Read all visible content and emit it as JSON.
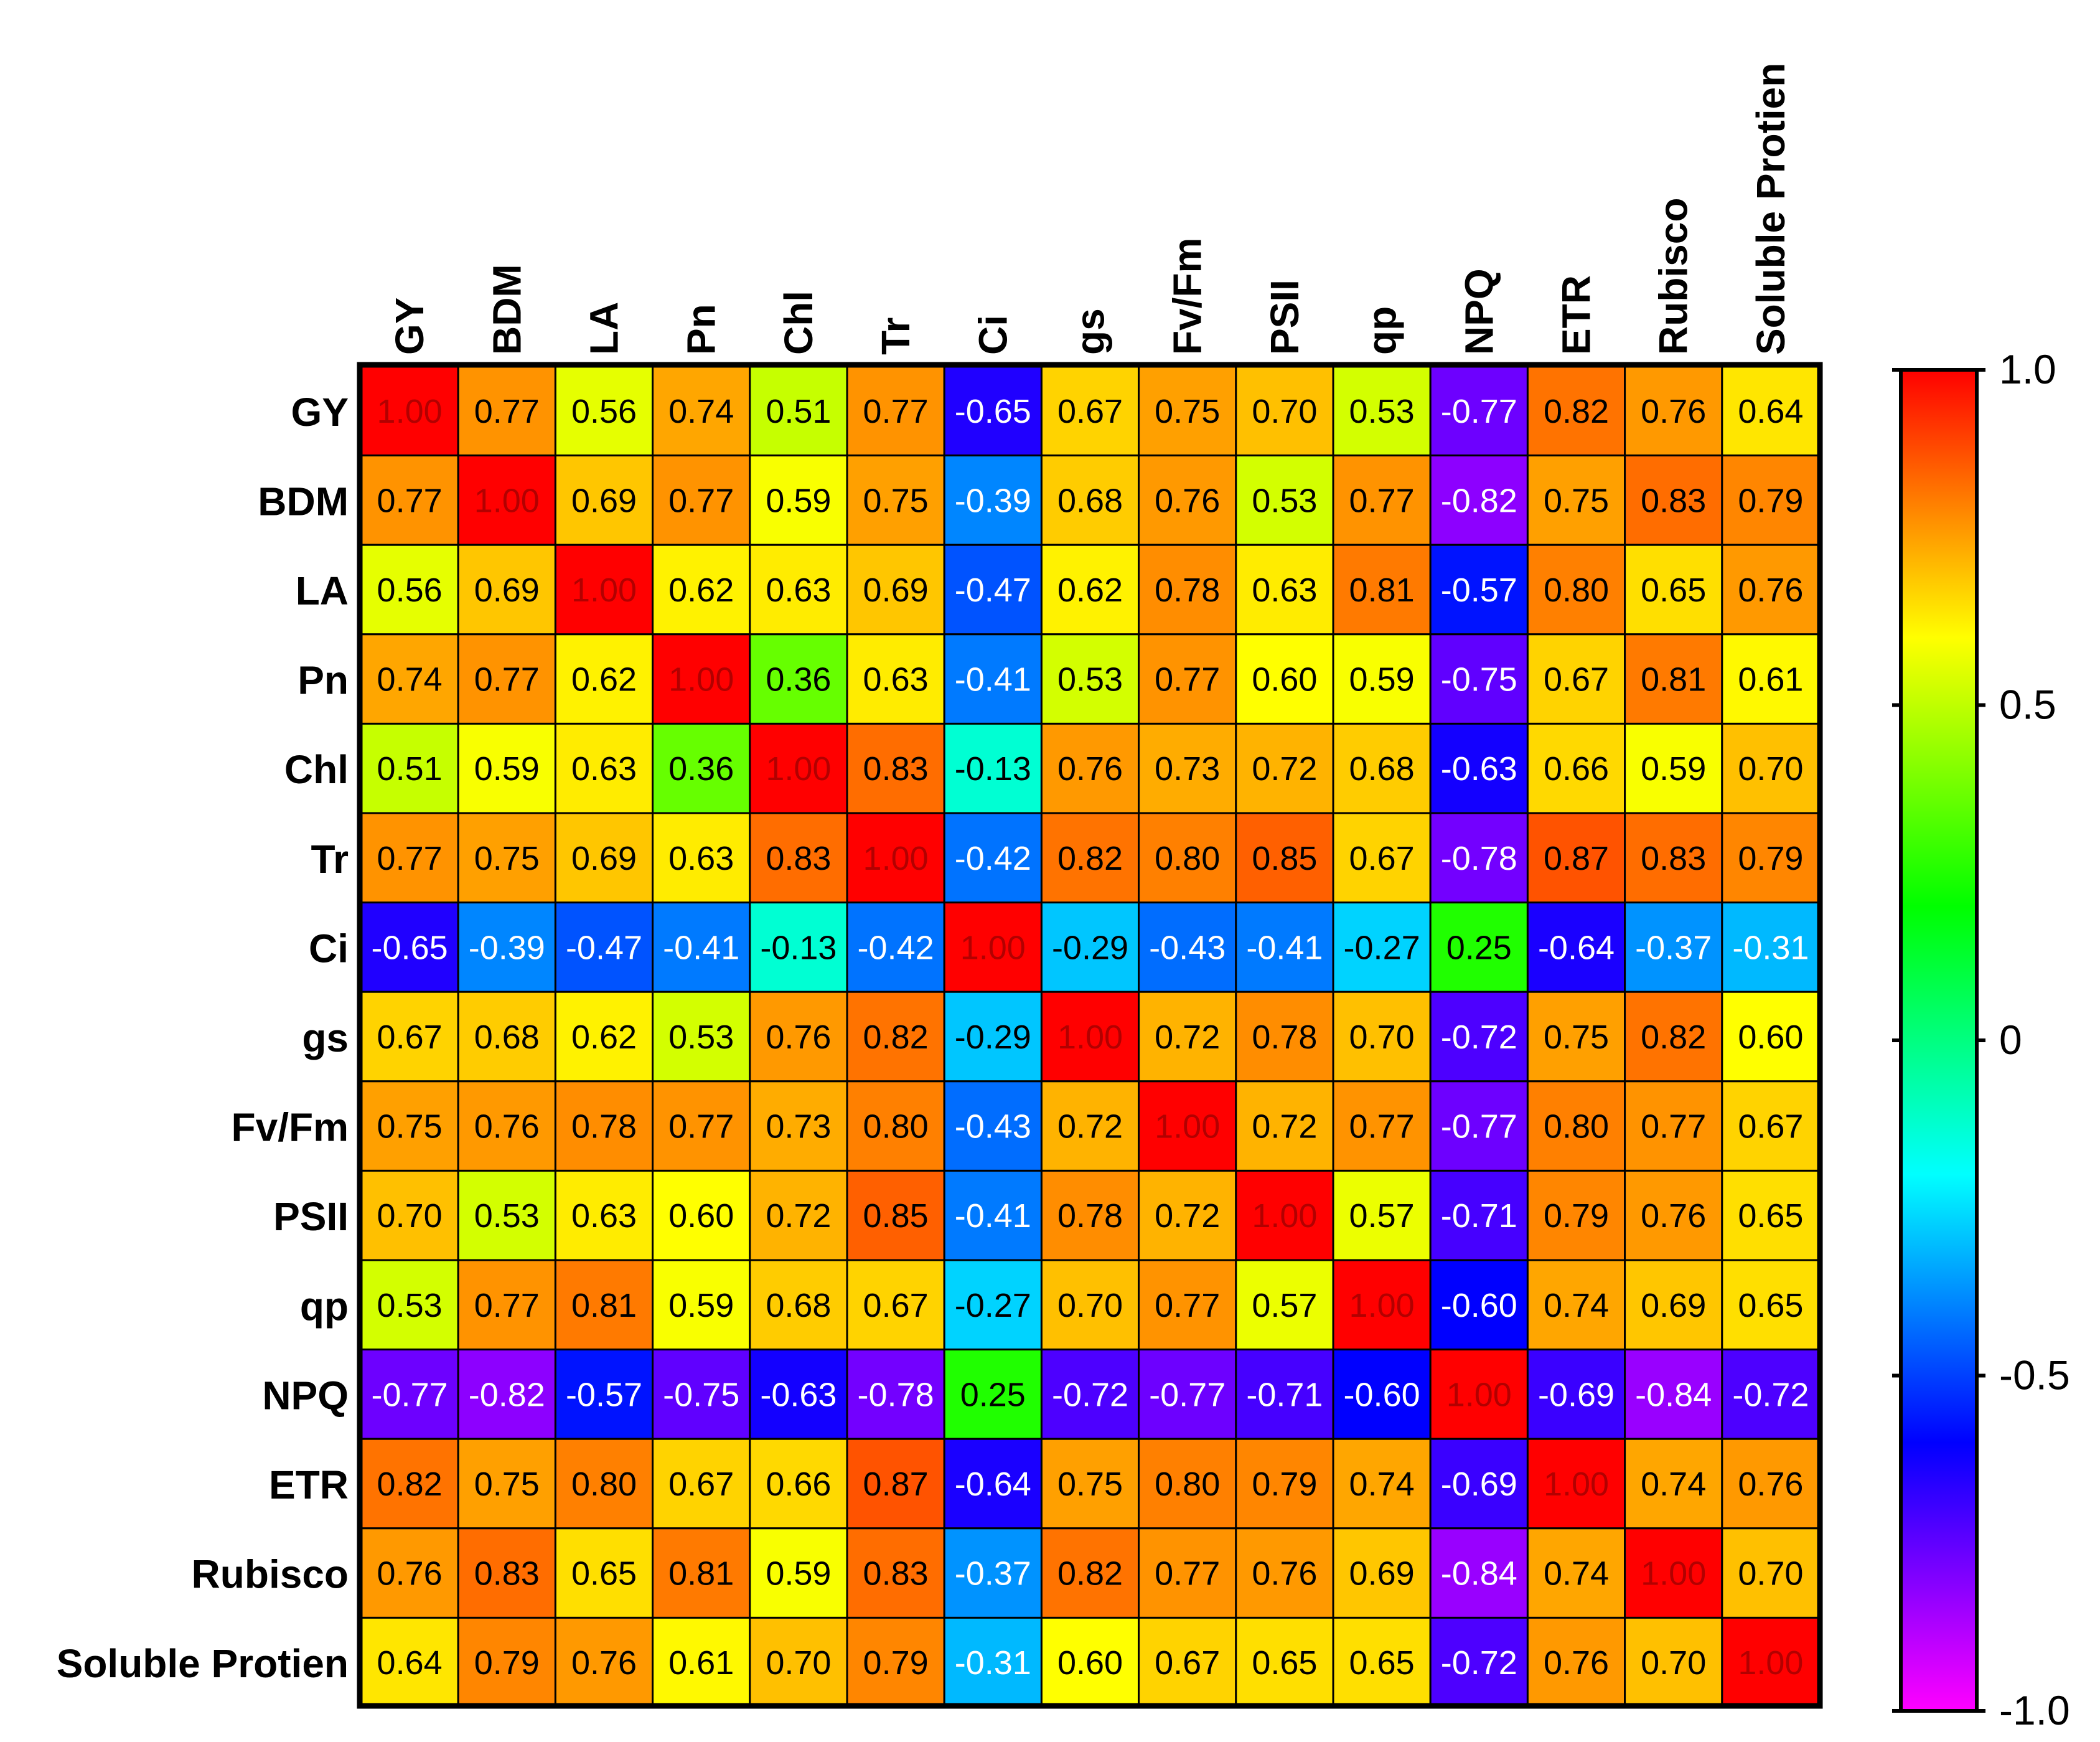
{
  "chart_data": {
    "type": "heatmap",
    "title": "",
    "variables": [
      "GY",
      "BDM",
      "LA",
      "Pn",
      "Chl",
      "Tr",
      "Ci",
      "gs",
      "Fv/Fm",
      "PSII",
      "qp",
      "NPQ",
      "ETR",
      "Rubisco",
      "Soluble Protien"
    ],
    "values": [
      [
        1.0,
        0.77,
        0.56,
        0.74,
        0.51,
        0.77,
        -0.65,
        0.67,
        0.75,
        0.7,
        0.53,
        -0.77,
        0.82,
        0.76,
        0.64
      ],
      [
        0.77,
        1.0,
        0.69,
        0.77,
        0.59,
        0.75,
        -0.39,
        0.68,
        0.76,
        0.53,
        0.77,
        -0.82,
        0.75,
        0.83,
        0.79
      ],
      [
        0.56,
        0.69,
        1.0,
        0.62,
        0.63,
        0.69,
        -0.47,
        0.62,
        0.78,
        0.63,
        0.81,
        -0.57,
        0.8,
        0.65,
        0.76
      ],
      [
        0.74,
        0.77,
        0.62,
        1.0,
        0.36,
        0.63,
        -0.41,
        0.53,
        0.77,
        0.6,
        0.59,
        -0.75,
        0.67,
        0.81,
        0.61
      ],
      [
        0.51,
        0.59,
        0.63,
        0.36,
        1.0,
        0.83,
        -0.13,
        0.76,
        0.73,
        0.72,
        0.68,
        -0.63,
        0.66,
        0.59,
        0.7
      ],
      [
        0.77,
        0.75,
        0.69,
        0.63,
        0.83,
        1.0,
        -0.42,
        0.82,
        0.8,
        0.85,
        0.67,
        -0.78,
        0.87,
        0.83,
        0.79
      ],
      [
        -0.65,
        -0.39,
        -0.47,
        -0.41,
        -0.13,
        -0.42,
        1.0,
        -0.29,
        -0.43,
        -0.41,
        -0.27,
        0.25,
        -0.64,
        -0.37,
        -0.31
      ],
      [
        0.67,
        0.68,
        0.62,
        0.53,
        0.76,
        0.82,
        -0.29,
        1.0,
        0.72,
        0.78,
        0.7,
        -0.72,
        0.75,
        0.82,
        0.6
      ],
      [
        0.75,
        0.76,
        0.78,
        0.77,
        0.73,
        0.8,
        -0.43,
        0.72,
        1.0,
        0.72,
        0.77,
        -0.77,
        0.8,
        0.77,
        0.67
      ],
      [
        0.7,
        0.53,
        0.63,
        0.6,
        0.72,
        0.85,
        -0.41,
        0.78,
        0.72,
        1.0,
        0.57,
        -0.71,
        0.79,
        0.76,
        0.65
      ],
      [
        0.53,
        0.77,
        0.81,
        0.59,
        0.68,
        0.67,
        -0.27,
        0.7,
        0.77,
        0.57,
        1.0,
        -0.6,
        0.74,
        0.69,
        0.65
      ],
      [
        -0.77,
        -0.82,
        -0.57,
        -0.75,
        -0.63,
        -0.78,
        0.25,
        -0.72,
        -0.77,
        -0.71,
        -0.6,
        1.0,
        -0.69,
        -0.84,
        -0.72
      ],
      [
        0.82,
        0.75,
        0.8,
        0.67,
        0.66,
        0.87,
        -0.64,
        0.75,
        0.8,
        0.79,
        0.74,
        -0.69,
        1.0,
        0.74,
        0.76
      ],
      [
        0.76,
        0.83,
        0.65,
        0.81,
        0.59,
        0.83,
        -0.37,
        0.82,
        0.77,
        0.76,
        0.69,
        -0.84,
        0.74,
        1.0,
        0.7
      ],
      [
        0.64,
        0.79,
        0.76,
        0.61,
        0.7,
        0.79,
        -0.31,
        0.6,
        0.67,
        0.65,
        0.65,
        -0.72,
        0.76,
        0.7,
        1.0
      ]
    ],
    "colorbar": {
      "range": [
        -1.0,
        1.0
      ],
      "ticks": [
        1.0,
        0.5,
        0,
        -0.5,
        -1.0
      ],
      "tick_labels": [
        "1.0",
        "0.5",
        "0",
        "-0.5",
        "-1.0"
      ],
      "colormap": [
        [
          -1.0,
          "#ff00ff"
        ],
        [
          -0.8,
          "#8000ff"
        ],
        [
          -0.6,
          "#0000ff"
        ],
        [
          -0.4,
          "#0080ff"
        ],
        [
          -0.2,
          "#00ffff"
        ],
        [
          0.0,
          "#00ff80"
        ],
        [
          0.2,
          "#00ff00"
        ],
        [
          0.4,
          "#80ff00"
        ],
        [
          0.6,
          "#ffff00"
        ],
        [
          0.8,
          "#ff8000"
        ],
        [
          1.0,
          "#ff0000"
        ]
      ]
    }
  }
}
